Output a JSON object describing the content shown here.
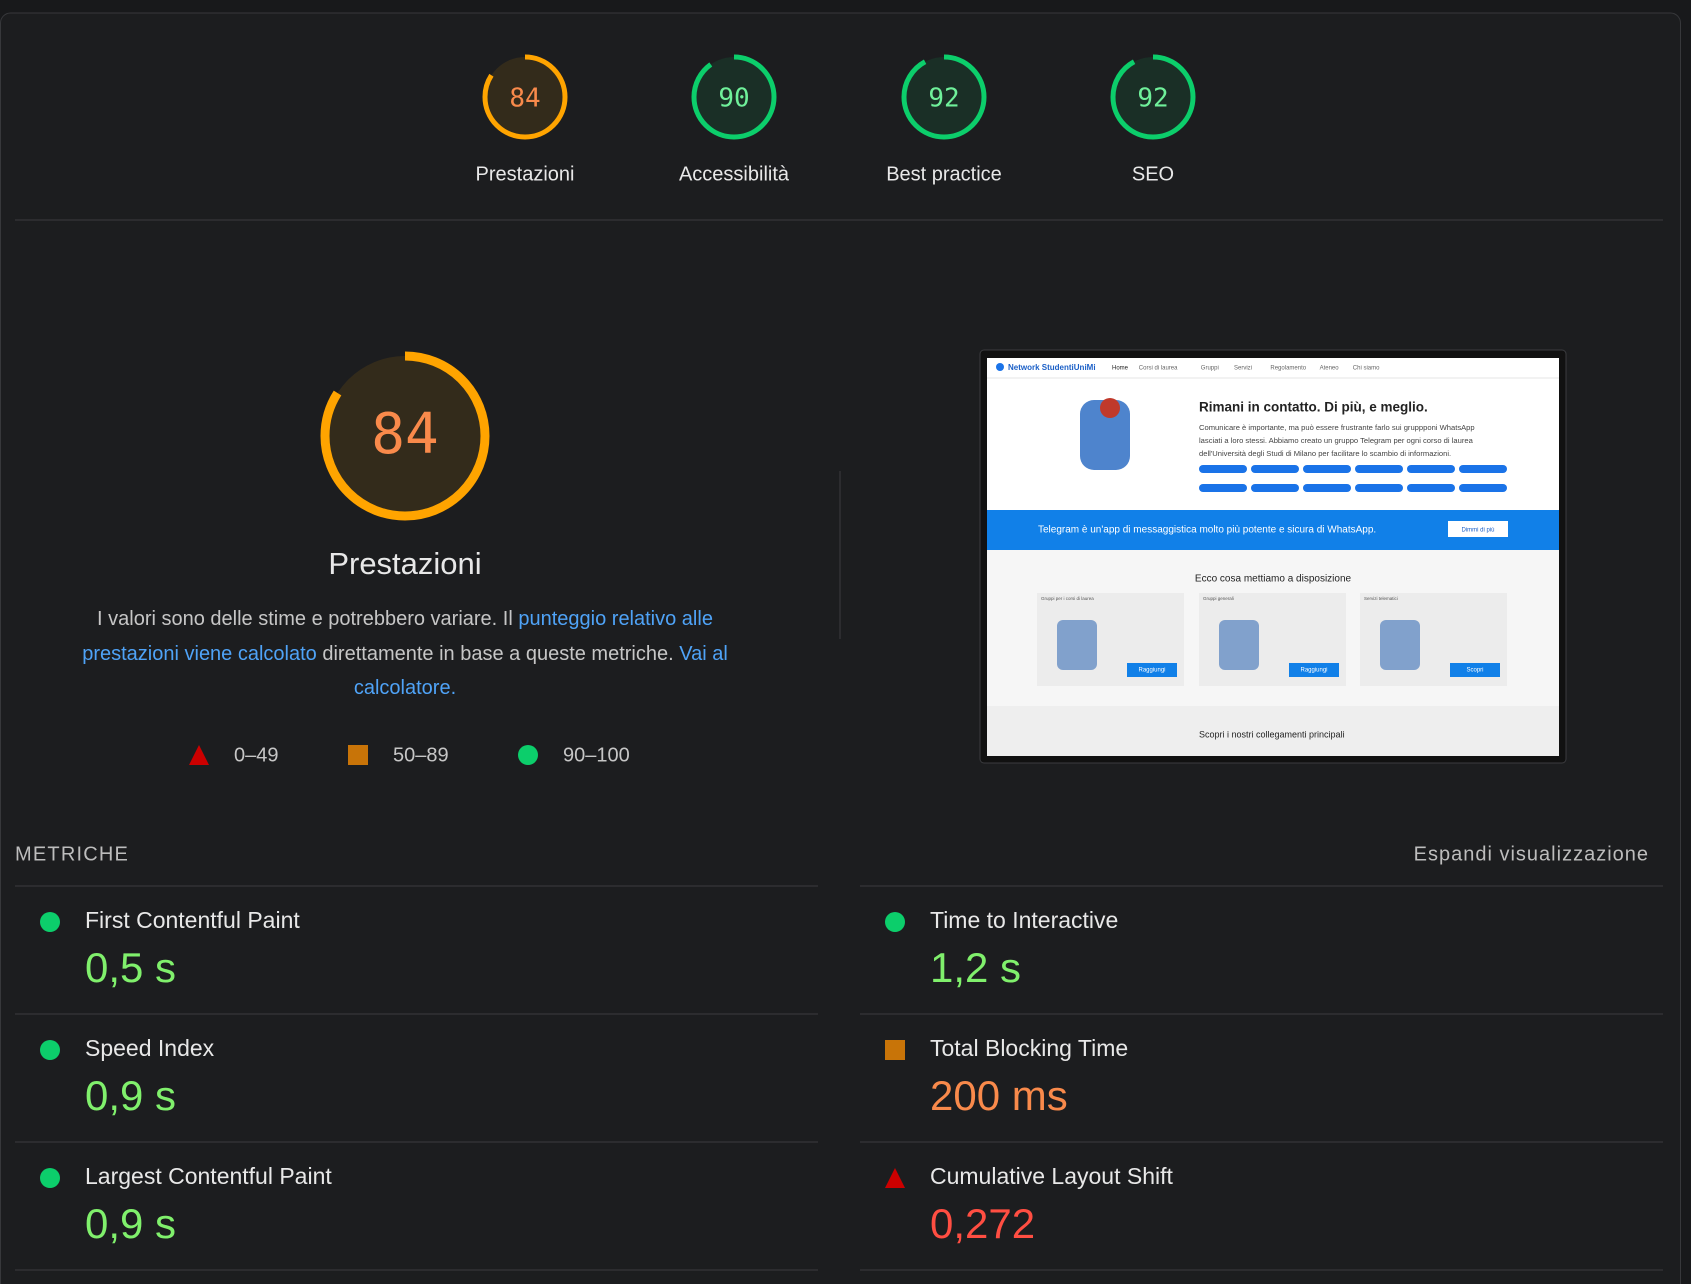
{
  "summary": [
    {
      "label": "Prestazioni",
      "score": 84,
      "color": "#ffa400",
      "text_color": "#f98a4b"
    },
    {
      "label": "Accessibilità",
      "score": 90,
      "color": "#0cce6b",
      "text_color": "#6ff09a"
    },
    {
      "label": "Best practice",
      "score": 92,
      "color": "#0cce6b",
      "text_color": "#6ff09a"
    },
    {
      "label": "SEO",
      "score": 92,
      "color": "#0cce6b",
      "text_color": "#6ff09a"
    }
  ],
  "main": {
    "score": 84,
    "title": "Prestazioni",
    "color": "#ffa400",
    "text_color": "#f98a4b",
    "description": [
      {
        "text": "I valori sono delle stime e potrebbero variare. Il ",
        "link": false
      },
      {
        "text": "punteggio relativo alle prestazioni viene calcolato",
        "link": true
      },
      {
        "text": " direttamente in base a queste metriche. ",
        "link": false
      },
      {
        "text": "Vai al calcolatore.",
        "link": true
      }
    ],
    "legend": [
      {
        "shape": "triangle",
        "color": "#cc0000",
        "label": "0–49"
      },
      {
        "shape": "square",
        "color": "#c87408",
        "label": "50–89"
      },
      {
        "shape": "circle",
        "color": "#0cce6b",
        "label": "90–100"
      }
    ]
  },
  "thumbnail": {
    "brand": "Network StudentiUniMi",
    "nav": [
      "Home",
      "Corsi di laurea",
      "Gruppi",
      "Servizi",
      "Regolamento",
      "Ateneo",
      "Chi siamo"
    ],
    "heading": "Rimani in contatto. Di più, e meglio.",
    "paragraph": [
      "Comunicare è importante, ma può essere frustrante farlo sui gruppponi WhatsApp",
      "lasciati a loro stessi. Abbiamo creato un gruppo Telegram per ogni corso di laurea",
      "dell'Università degli Studi di Milano per facilitare lo scambio di informazioni."
    ],
    "banner": "Telegram è un'app di messaggistica molto più potente e sicura di WhatsApp.",
    "banner_button": "Dimmi di più",
    "section": "Ecco cosa mettiamo a disposizione",
    "cards": [
      {
        "tag": "Gruppi per i corsi di laurea",
        "button": "Raggiungi"
      },
      {
        "tag": "Gruppi generali",
        "button": "Raggiungi"
      },
      {
        "tag": "Servizi telematici",
        "button": "Scopri"
      }
    ],
    "footer_section": "Scopri i nostri collegamenti principali"
  },
  "metrics": {
    "title": "METRICHE",
    "toggle": "Espandi visualizzazione",
    "items": [
      {
        "name": "First Contentful Paint",
        "value": "0,5 s",
        "shape": "circle",
        "color": "#0cce6b",
        "text_color": "#80f06c"
      },
      {
        "name": "Speed Index",
        "value": "0,9 s",
        "shape": "circle",
        "color": "#0cce6b",
        "text_color": "#80f06c"
      },
      {
        "name": "Largest Contentful Paint",
        "value": "0,9 s",
        "shape": "circle",
        "color": "#0cce6b",
        "text_color": "#80f06c"
      },
      {
        "name": "Time to Interactive",
        "value": "1,2 s",
        "shape": "circle",
        "color": "#0cce6b",
        "text_color": "#80f06c"
      },
      {
        "name": "Total Blocking Time",
        "value": "200 ms",
        "shape": "square",
        "color": "#c87408",
        "text_color": "#f98a4b"
      },
      {
        "name": "Cumulative Layout Shift",
        "value": "0,272",
        "shape": "triangle",
        "color": "#cc0000",
        "text_color": "#ff4e42"
      }
    ]
  }
}
